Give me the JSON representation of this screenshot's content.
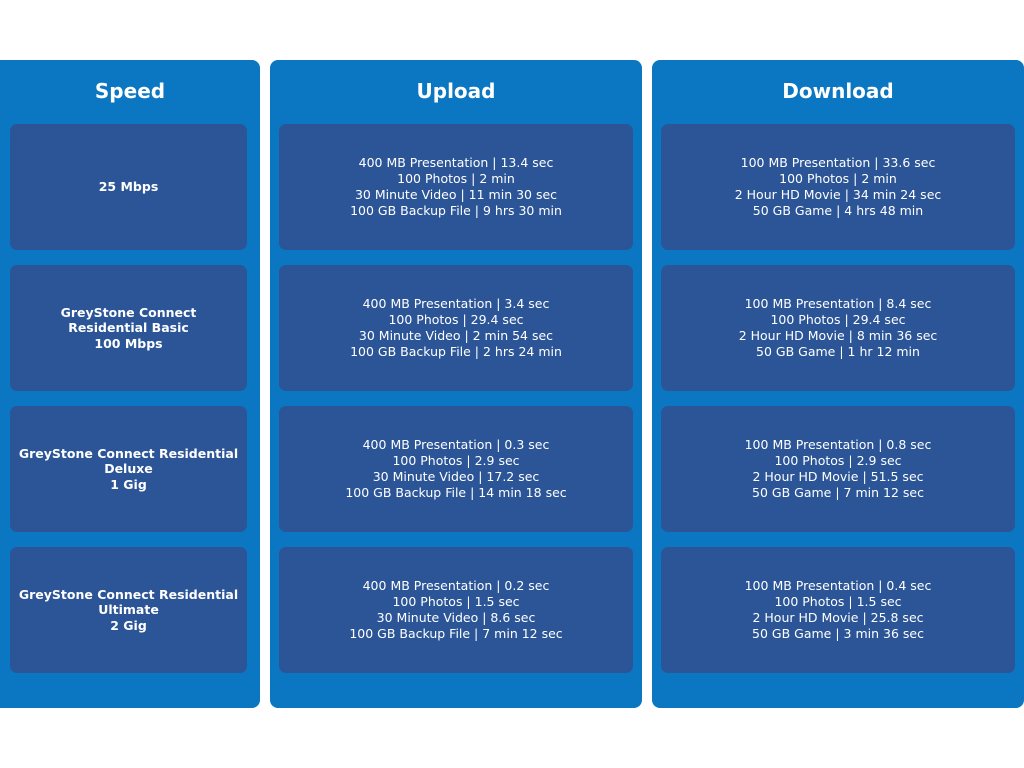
{
  "columns": {
    "speed": "Speed",
    "upload": "Upload",
    "download": "Download"
  },
  "rows": [
    {
      "speed": [
        "25 Mbps"
      ],
      "upload": [
        "400 MB Presentation | 13.4 sec",
        "100 Photos | 2 min",
        "30 Minute Video | 11 min 30 sec",
        "100 GB Backup File | 9 hrs 30 min"
      ],
      "download": [
        "100 MB Presentation | 33.6 sec",
        "100 Photos | 2 min",
        "2 Hour HD Movie | 34 min 24 sec",
        "50 GB Game | 4 hrs 48 min"
      ]
    },
    {
      "speed": [
        "GreyStone Connect",
        "Residential Basic",
        "100 Mbps"
      ],
      "upload": [
        "400 MB Presentation | 3.4 sec",
        "100 Photos | 29.4 sec",
        "30 Minute Video | 2 min 54 sec",
        "100 GB Backup File | 2 hrs 24 min"
      ],
      "download": [
        "100 MB Presentation | 8.4 sec",
        "100 Photos | 29.4 sec",
        "2 Hour HD Movie | 8 min 36 sec",
        "50 GB Game | 1 hr 12 min"
      ]
    },
    {
      "speed": [
        "GreyStone Connect Residential",
        "Deluxe",
        "1 Gig"
      ],
      "upload": [
        "400 MB Presentation | 0.3 sec",
        "100 Photos | 2.9 sec",
        "30 Minute Video | 17.2 sec",
        "100 GB Backup File | 14 min 18 sec"
      ],
      "download": [
        "100 MB Presentation | 0.8 sec",
        "100 Photos | 2.9 sec",
        "2 Hour HD Movie | 51.5 sec",
        "50 GB Game | 7 min 12 sec"
      ]
    },
    {
      "speed": [
        "GreyStone Connect Residential",
        "Ultimate",
        "2 Gig"
      ],
      "upload": [
        "400 MB Presentation | 0.2 sec",
        "100 Photos | 1.5 sec",
        "30 Minute Video | 8.6 sec",
        "100 GB Backup File | 7 min 12 sec"
      ],
      "download": [
        "100 MB Presentation | 0.4 sec",
        "100 Photos | 1.5 sec",
        "2 Hour HD Movie | 25.8 sec",
        "50 GB Game | 3 min 36 sec"
      ]
    }
  ],
  "colors": {
    "column_bg": "#0b77c2",
    "cell_bg": "#2b5597",
    "text": "#ffffff"
  }
}
